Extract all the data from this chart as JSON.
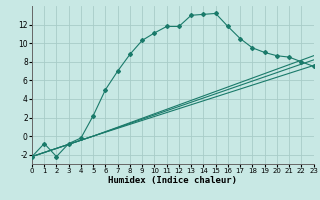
{
  "xlabel": "Humidex (Indice chaleur)",
  "bg_color": "#c8e8e4",
  "grid_color": "#a8ccc8",
  "line_color": "#1a7a6a",
  "xlim": [
    0,
    23
  ],
  "ylim": [
    -3,
    14
  ],
  "xticks": [
    0,
    1,
    2,
    3,
    4,
    5,
    6,
    7,
    8,
    9,
    10,
    11,
    12,
    13,
    14,
    15,
    16,
    17,
    18,
    19,
    20,
    21,
    22,
    23
  ],
  "yticks": [
    -2,
    0,
    2,
    4,
    6,
    8,
    10,
    12
  ],
  "curve_x": [
    0,
    1,
    2,
    3,
    4,
    5,
    6,
    7,
    8,
    9,
    10,
    11,
    12,
    13,
    14,
    15,
    16,
    17,
    18,
    19,
    20,
    21,
    22,
    23
  ],
  "curve_y": [
    -2.2,
    -0.8,
    -2.2,
    -0.8,
    -0.2,
    2.2,
    5.0,
    7.0,
    8.8,
    10.3,
    11.1,
    11.8,
    11.8,
    13.0,
    13.1,
    13.2,
    11.8,
    10.5,
    9.5,
    9.0,
    8.65,
    8.5,
    8.0,
    7.5
  ],
  "line1_x": [
    0,
    5,
    23
  ],
  "line1_y": [
    -2.2,
    0.0,
    7.6
  ],
  "line2_x": [
    0,
    5,
    23
  ],
  "line2_y": [
    -2.2,
    0.0,
    8.2
  ],
  "line3_x": [
    0,
    5,
    23
  ],
  "line3_y": [
    -2.2,
    0.0,
    8.65
  ]
}
